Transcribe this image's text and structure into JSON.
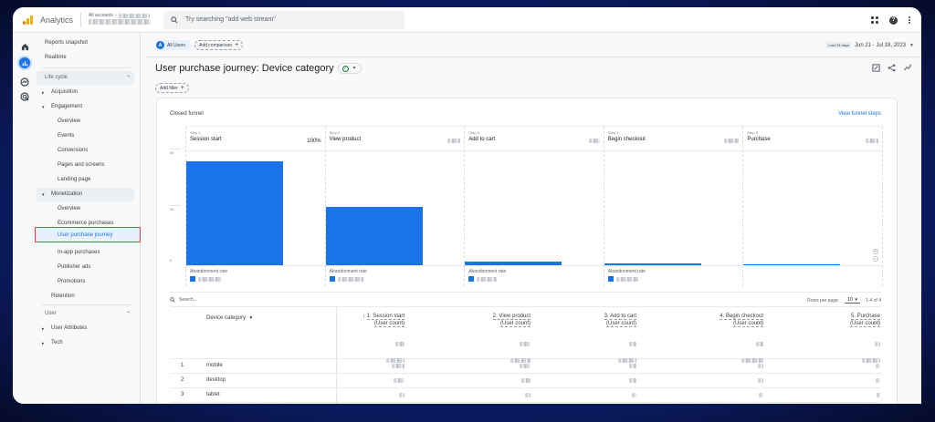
{
  "header": {
    "app_name": "Analytics",
    "account_breadcrumb": "All accounts",
    "search_placeholder": "Try searching \"add web stream\""
  },
  "icon_rail": [
    "home-icon",
    "reports-icon",
    "explore-icon",
    "advertising-icon"
  ],
  "nav": {
    "top_items": [
      "Reports snapshot",
      "Realtime"
    ],
    "lifecycle": {
      "label": "Life cycle",
      "groups": [
        {
          "label": "Acquisition",
          "expanded": false,
          "items": []
        },
        {
          "label": "Engagement",
          "expanded": true,
          "items": [
            "Overview",
            "Events",
            "Conversions",
            "Pages and screens",
            "Landing page"
          ]
        },
        {
          "label": "Monetization",
          "expanded": true,
          "items": [
            "Overview",
            "Ecommerce purchases",
            "User purchase journey",
            "In-app purchases",
            "Publisher ads",
            "Promotions"
          ]
        },
        {
          "label": "Retention"
        }
      ]
    },
    "user": {
      "label": "User",
      "groups": [
        "User Attributes",
        "Tech"
      ]
    },
    "selected_item": "User purchase journey"
  },
  "comparison_bar": {
    "segment_avatar": "A",
    "segment_label": "All Users",
    "add_comparison": "Add comparison",
    "date_label": "Last 28 days",
    "date_range": "Jun 21 - Jul 18, 2023"
  },
  "page": {
    "title": "User purchase journey: Device category",
    "add_filter": "Add filter"
  },
  "card": {
    "title": "Closed funnel",
    "view_steps_link": "View funnel steps",
    "abandonment_label": "Abandonment rate"
  },
  "chart_data": {
    "type": "bar",
    "title": "Closed funnel",
    "categories": [
      "Session start",
      "View product",
      "Add to cart",
      "Begin checkout",
      "Purchase"
    ],
    "step_labels": [
      "Step 1",
      "Step 2",
      "Step 3",
      "Step 4",
      "Step 5"
    ],
    "step_percent": [
      "100%",
      "",
      "",
      "",
      ""
    ],
    "values": [
      4000,
      2250,
      130,
      60,
      25
    ],
    "yticks": [
      "4K",
      "2K",
      "0"
    ],
    "ylim": [
      0,
      4400
    ],
    "xlabel": "",
    "ylabel": "",
    "grid": true,
    "legend": "none",
    "color": "#1a73e8"
  },
  "table": {
    "search_placeholder": "Search...",
    "rows_per_page_label": "Rows per page:",
    "rows_per_page": "10",
    "pagination": "1-4 of 4",
    "dimension_header": "Device category",
    "metric_headers": [
      {
        "title": "1. Session start",
        "sub": "(User count)",
        "sorted": true
      },
      {
        "title": "2. View product",
        "sub": "(User count)"
      },
      {
        "title": "3. Add to cart",
        "sub": "(User count)"
      },
      {
        "title": "4. Begin checkout",
        "sub": "(User count)"
      },
      {
        "title": "5. Purchase",
        "sub": "(User count)"
      }
    ],
    "rows": [
      {
        "index": "1",
        "device": "mobile"
      },
      {
        "index": "2",
        "device": "desktop"
      },
      {
        "index": "3",
        "device": "tablet"
      }
    ]
  },
  "colors": {
    "accent": "#1a73e8",
    "highlight_border": "#e53935",
    "success": "#188038"
  }
}
